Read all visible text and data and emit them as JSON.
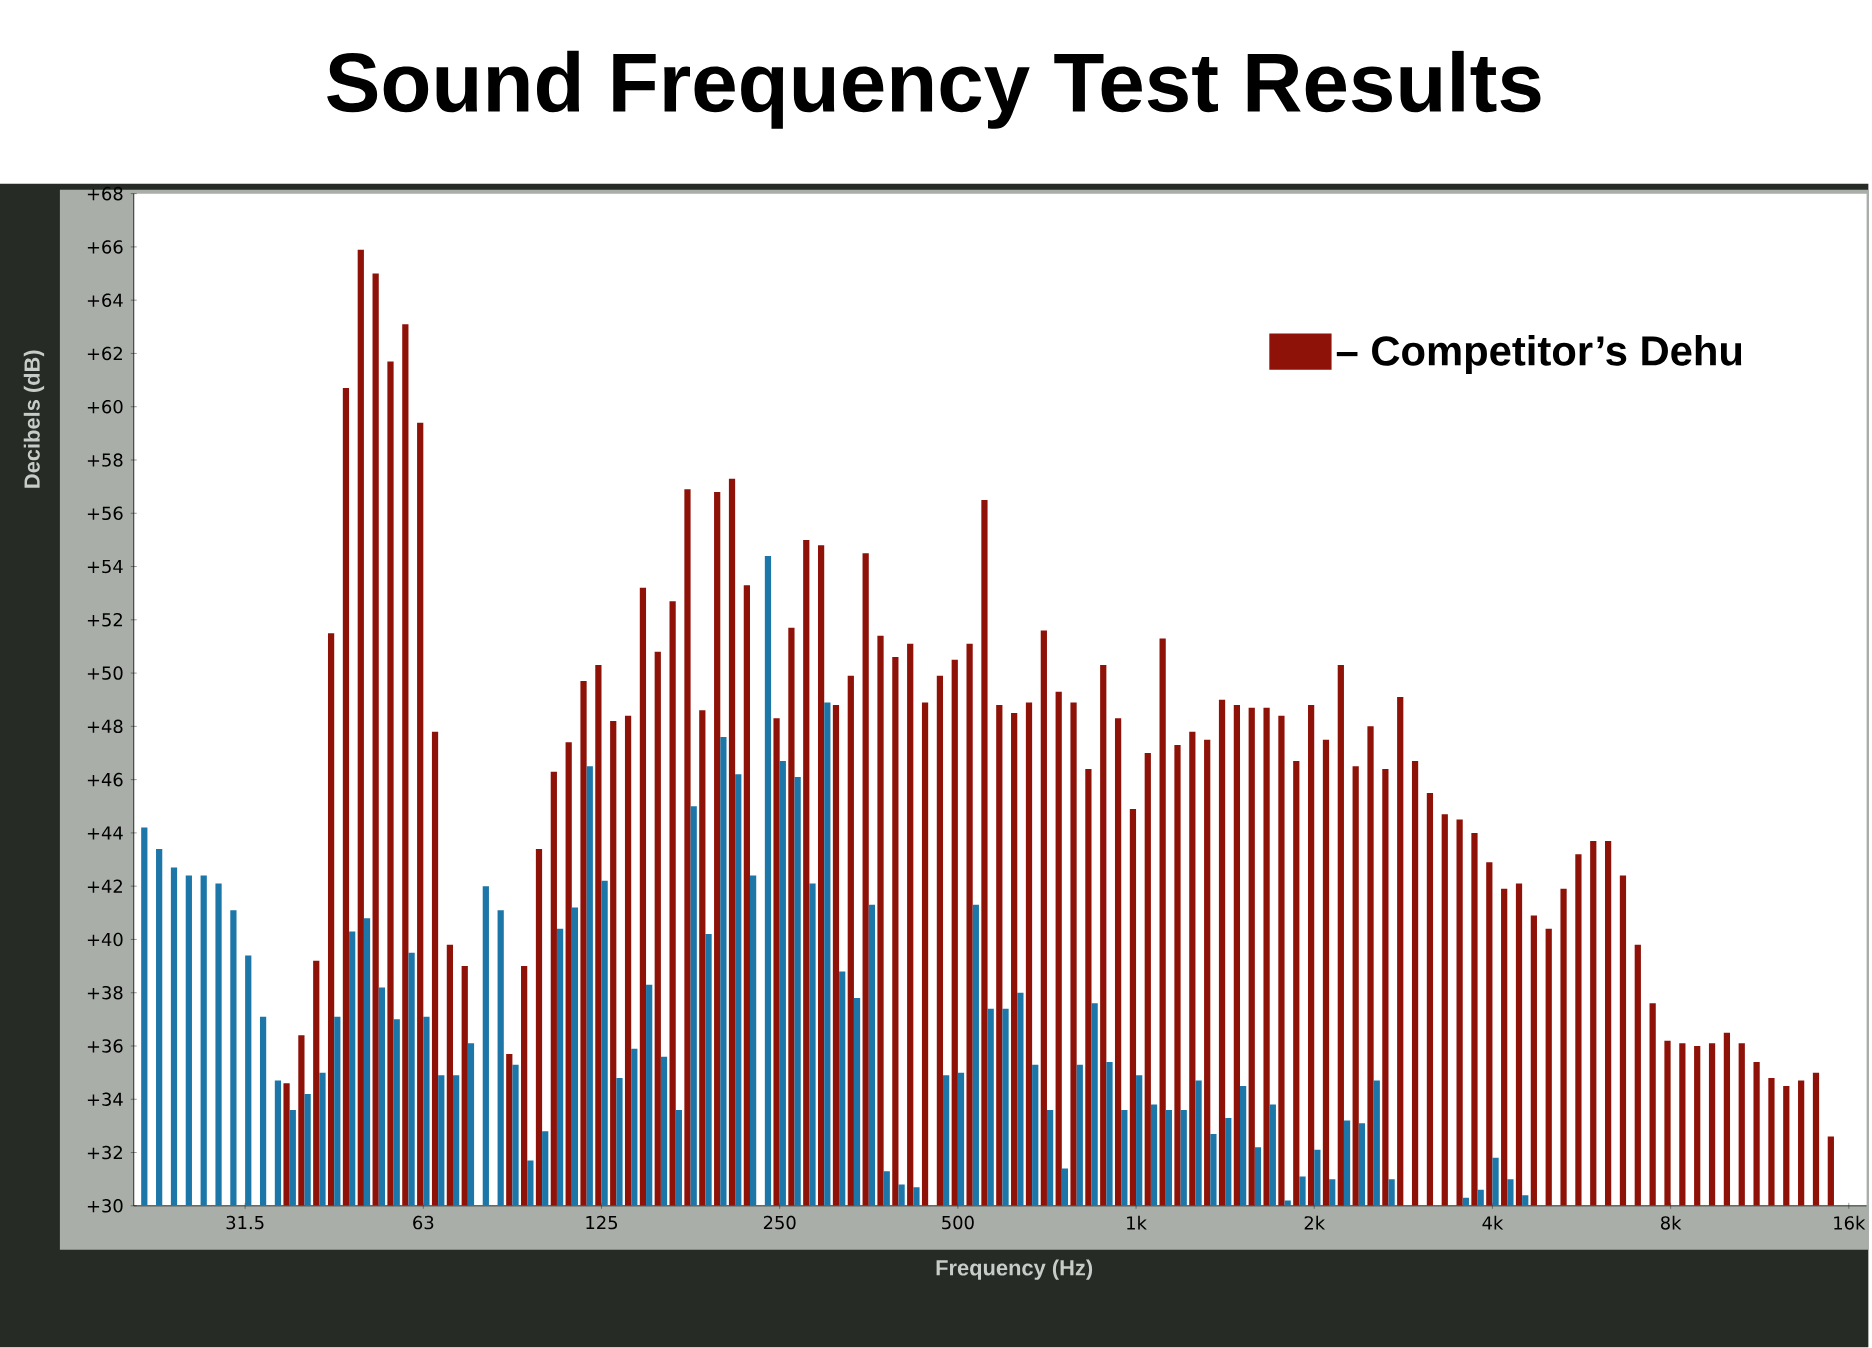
{
  "chart_data": {
    "type": "bar",
    "title": "Sound Frequency Test Results",
    "xlabel": "Frequency (Hz)",
    "ylabel": "Decibels (dB)",
    "categories": [
      null,
      null,
      null,
      null,
      null,
      null,
      null,
      "31.5",
      null,
      null,
      null,
      null,
      null,
      null,
      null,
      null,
      null,
      null,
      null,
      "63",
      null,
      null,
      null,
      null,
      null,
      null,
      null,
      null,
      null,
      null,
      null,
      "125",
      null,
      null,
      null,
      null,
      null,
      null,
      null,
      null,
      null,
      null,
      null,
      "250",
      null,
      null,
      null,
      null,
      null,
      null,
      null,
      null,
      null,
      null,
      null,
      "500",
      null,
      null,
      null,
      null,
      null,
      null,
      null,
      null,
      null,
      null,
      null,
      "1k",
      null,
      null,
      null,
      null,
      null,
      null,
      null,
      null,
      null,
      null,
      null,
      "2k",
      null,
      null,
      null,
      null,
      null,
      null,
      null,
      null,
      null,
      null,
      null,
      "4k",
      null,
      null,
      null,
      null,
      null,
      null,
      null,
      null,
      null,
      null,
      null,
      "8k",
      null,
      null,
      null,
      null,
      null,
      null,
      null,
      null,
      null,
      null,
      null,
      "16k"
    ],
    "series": [
      {
        "name": "– Competitor’s Dehu",
        "color": "#8f1209",
        "values": [
          null,
          null,
          null,
          null,
          null,
          null,
          null,
          null,
          null,
          null,
          34.6,
          36.4,
          39.2,
          51.5,
          60.7,
          65.9,
          65.0,
          61.7,
          63.1,
          59.4,
          47.8,
          39.8,
          39.0,
          null,
          null,
          35.7,
          39.0,
          43.4,
          46.3,
          47.4,
          49.7,
          50.3,
          48.2,
          48.4,
          53.2,
          50.8,
          52.7,
          56.9,
          48.6,
          56.8,
          57.3,
          53.3,
          null,
          48.3,
          51.7,
          55.0,
          54.8,
          48.8,
          49.9,
          54.5,
          51.4,
          50.6,
          51.1,
          48.9,
          49.9,
          50.5,
          51.1,
          56.5,
          48.8,
          48.5,
          48.9,
          51.6,
          49.3,
          48.9,
          46.4,
          50.3,
          48.3,
          44.9,
          47.0,
          51.3,
          47.3,
          47.8,
          47.5,
          49.0,
          48.8,
          48.7,
          48.7,
          48.4,
          46.7,
          48.8,
          47.5,
          50.3,
          46.5,
          48.0,
          46.4,
          49.1,
          46.7,
          45.5,
          44.7,
          44.5,
          44.0,
          42.9,
          41.9,
          42.1,
          40.9,
          40.4,
          41.9,
          43.2,
          43.7,
          43.7,
          42.4,
          39.8,
          37.6,
          36.2,
          36.1,
          36.0,
          36.1,
          36.5,
          36.1,
          35.4,
          34.8,
          34.5,
          34.7,
          35.0,
          32.6,
          null
        ]
      },
      {
        "color": "#1c76a8",
        "values": [
          44.2,
          43.4,
          42.7,
          42.4,
          42.4,
          42.1,
          41.1,
          39.4,
          37.1,
          34.7,
          33.6,
          34.2,
          35.0,
          37.1,
          40.3,
          40.8,
          38.2,
          37.0,
          39.5,
          37.1,
          34.9,
          34.9,
          36.1,
          42.0,
          41.1,
          35.3,
          31.7,
          32.8,
          40.4,
          41.2,
          46.5,
          42.2,
          34.8,
          35.9,
          38.3,
          35.6,
          33.6,
          45.0,
          40.2,
          47.6,
          46.2,
          42.4,
          54.4,
          46.7,
          46.1,
          42.1,
          48.9,
          38.8,
          37.8,
          41.3,
          31.3,
          30.8,
          30.7,
          null,
          34.9,
          35.0,
          41.3,
          37.4,
          37.4,
          38.0,
          35.3,
          33.6,
          31.4,
          35.3,
          37.6,
          35.4,
          33.6,
          34.9,
          33.8,
          33.6,
          33.6,
          34.7,
          32.7,
          33.3,
          34.5,
          32.2,
          33.8,
          30.2,
          31.1,
          32.1,
          31.0,
          33.2,
          33.1,
          34.7,
          31.0,
          null,
          null,
          null,
          null,
          30.3,
          30.6,
          31.8,
          31.0,
          30.4,
          null,
          null,
          null,
          null,
          null,
          null,
          null,
          null,
          null,
          null,
          null,
          null,
          null,
          null,
          null,
          null,
          null,
          null,
          null,
          null,
          null,
          null
        ]
      }
    ],
    "ylim": [
      30,
      68
    ],
    "yticks": [
      {
        "value": 30,
        "label": "+30"
      },
      {
        "value": 32,
        "label": "+32"
      },
      {
        "value": 34,
        "label": "+34"
      },
      {
        "value": 36,
        "label": "+36"
      },
      {
        "value": 38,
        "label": "+38"
      },
      {
        "value": 40,
        "label": "+40"
      },
      {
        "value": 42,
        "label": "+42"
      },
      {
        "value": 44,
        "label": "+44"
      },
      {
        "value": 46,
        "label": "+46"
      },
      {
        "value": 48,
        "label": "+48"
      },
      {
        "value": 50,
        "label": "+50"
      },
      {
        "value": 52,
        "label": "+52"
      },
      {
        "value": 54,
        "label": "+54"
      },
      {
        "value": 56,
        "label": "+56"
      },
      {
        "value": 58,
        "label": "+58"
      },
      {
        "value": 60,
        "label": "+60"
      },
      {
        "value": 62,
        "label": "+62"
      },
      {
        "value": 64,
        "label": "+64"
      },
      {
        "value": 66,
        "label": "+66"
      },
      {
        "value": 68,
        "label": "+68"
      }
    ],
    "legend": "top right"
  }
}
